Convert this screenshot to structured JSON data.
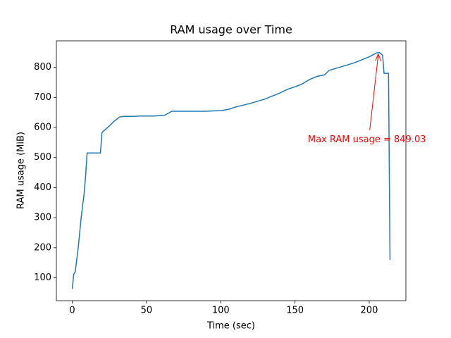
{
  "chart_data": {
    "type": "line",
    "title": "RAM usage over Time",
    "xlabel": "Time (sec)",
    "ylabel": "RAM usage (MiB)",
    "x": [
      0,
      1,
      2,
      4,
      6,
      8,
      9,
      10,
      15,
      19,
      20,
      25,
      28,
      32,
      35,
      42,
      45,
      55,
      62,
      65,
      67,
      75,
      90,
      95,
      100,
      105,
      110,
      120,
      130,
      140,
      145,
      150,
      155,
      160,
      165,
      170,
      173,
      180,
      190,
      200,
      205,
      207,
      209,
      210,
      213,
      214
    ],
    "series": [
      {
        "name": "RAM usage",
        "color": "#1f77b4",
        "values": [
          63,
          112,
          120,
          200,
          300,
          380,
          440,
          515,
          515,
          515,
          583,
          605,
          620,
          635,
          637,
          637,
          638,
          638,
          640,
          648,
          654,
          654,
          654,
          655,
          656,
          660,
          668,
          680,
          695,
          715,
          727,
          735,
          745,
          760,
          770,
          775,
          790,
          800,
          815,
          835,
          848,
          849.03,
          840,
          780,
          780,
          160
        ]
      }
    ],
    "xlim": [
      -10.7,
      224.7
    ],
    "ylim": [
      24,
      888
    ],
    "xticks": [
      0,
      50,
      100,
      150,
      200
    ],
    "yticks": [
      100,
      200,
      300,
      400,
      500,
      600,
      700,
      800
    ],
    "annotation": {
      "text": "Max RAM usage = 849.03",
      "x": 207,
      "y": 849.03,
      "color": "#ff0000"
    }
  }
}
